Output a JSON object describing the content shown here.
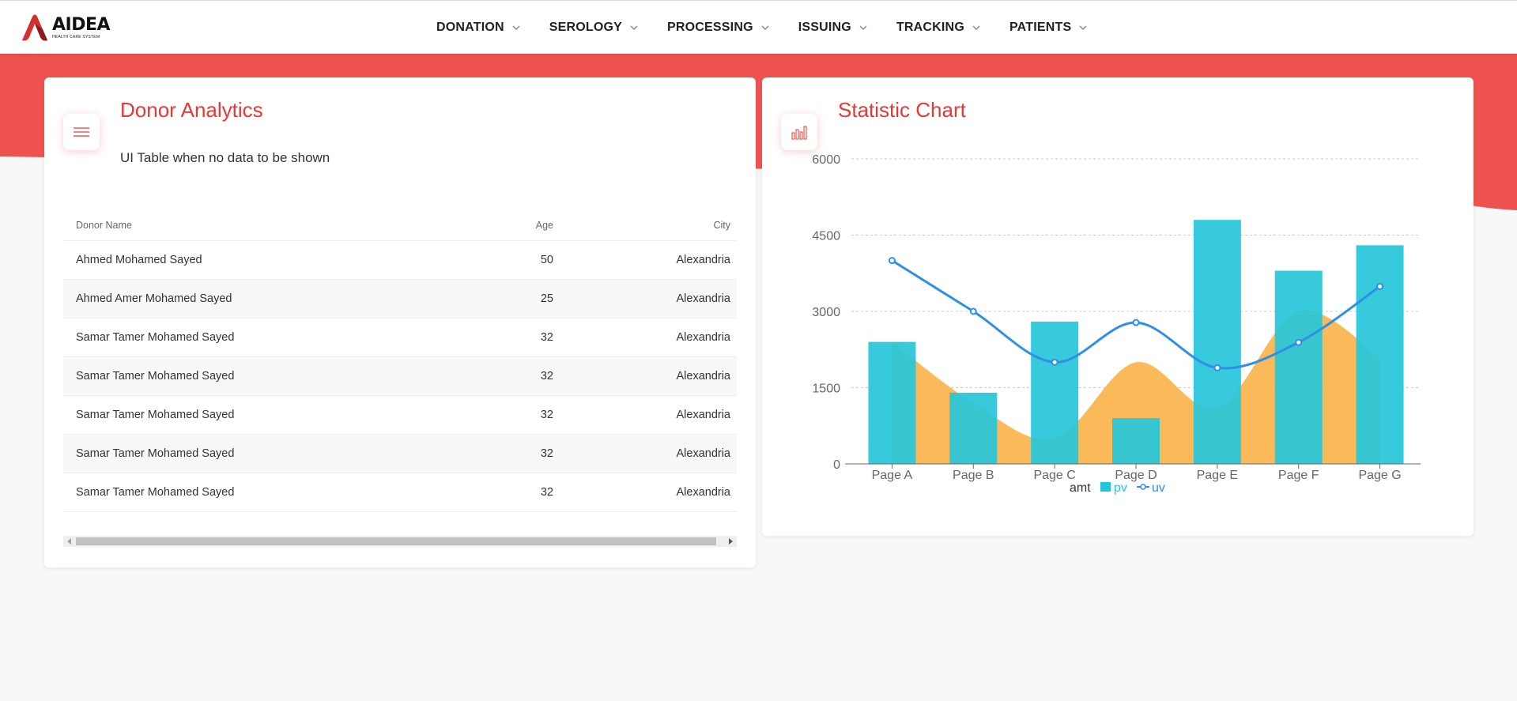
{
  "app": {
    "logo_name": "AIDEA",
    "logo_sub": "HEALTH CARE SYSTEM"
  },
  "nav": {
    "items": [
      {
        "label": "DONATION"
      },
      {
        "label": "SEROLOGY"
      },
      {
        "label": "PROCESSING"
      },
      {
        "label": "ISSUING"
      },
      {
        "label": "TRACKING"
      },
      {
        "label": "PATIENTS"
      }
    ]
  },
  "colors": {
    "accent": "#e53935",
    "band": "#ef5350",
    "pv": "#26c6da",
    "amt": "#f9b248",
    "uv": "#2f8fe8"
  },
  "donor_card": {
    "title": "Donor Analytics",
    "subtitle": "UI Table when no data to be shown",
    "icon": "menu-icon",
    "columns": {
      "name": "Donor Name",
      "age": "Age",
      "city": "City"
    },
    "rows": [
      {
        "name": "Ahmed Mohamed Sayed",
        "age": "50",
        "city": "Alexandria"
      },
      {
        "name": "Ahmed Amer Mohamed Sayed",
        "age": "25",
        "city": "Alexandria"
      },
      {
        "name": "Samar Tamer Mohamed Sayed",
        "age": "32",
        "city": "Alexandria"
      },
      {
        "name": "Samar Tamer Mohamed Sayed",
        "age": "32",
        "city": "Alexandria"
      },
      {
        "name": "Samar Tamer Mohamed Sayed",
        "age": "32",
        "city": "Alexandria"
      },
      {
        "name": "Samar Tamer Mohamed Sayed",
        "age": "32",
        "city": "Alexandria"
      },
      {
        "name": "Samar Tamer Mohamed Sayed",
        "age": "32",
        "city": "Alexandria"
      }
    ]
  },
  "stat_card": {
    "title": "Statistic Chart",
    "icon": "bar-chart-icon"
  },
  "chart_data": {
    "type": "bar",
    "categories": [
      "Page A",
      "Page B",
      "Page C",
      "Page D",
      "Page E",
      "Page F",
      "Page G"
    ],
    "series": [
      {
        "name": "amt",
        "type": "area",
        "values": [
          2400,
          1200,
          500,
          2000,
          1100,
          3000,
          2100
        ]
      },
      {
        "name": "pv",
        "type": "bar",
        "values": [
          2400,
          1400,
          2800,
          900,
          4800,
          3800,
          4300
        ]
      },
      {
        "name": "uv",
        "type": "line",
        "values": [
          4000,
          3000,
          2000,
          2780,
          1890,
          2390,
          3490
        ]
      }
    ],
    "yticks": [
      "0",
      "1500",
      "3000",
      "4500",
      "6000"
    ],
    "ylim": [
      0,
      6000
    ],
    "grid": true,
    "legend_position": "bottom-center"
  }
}
